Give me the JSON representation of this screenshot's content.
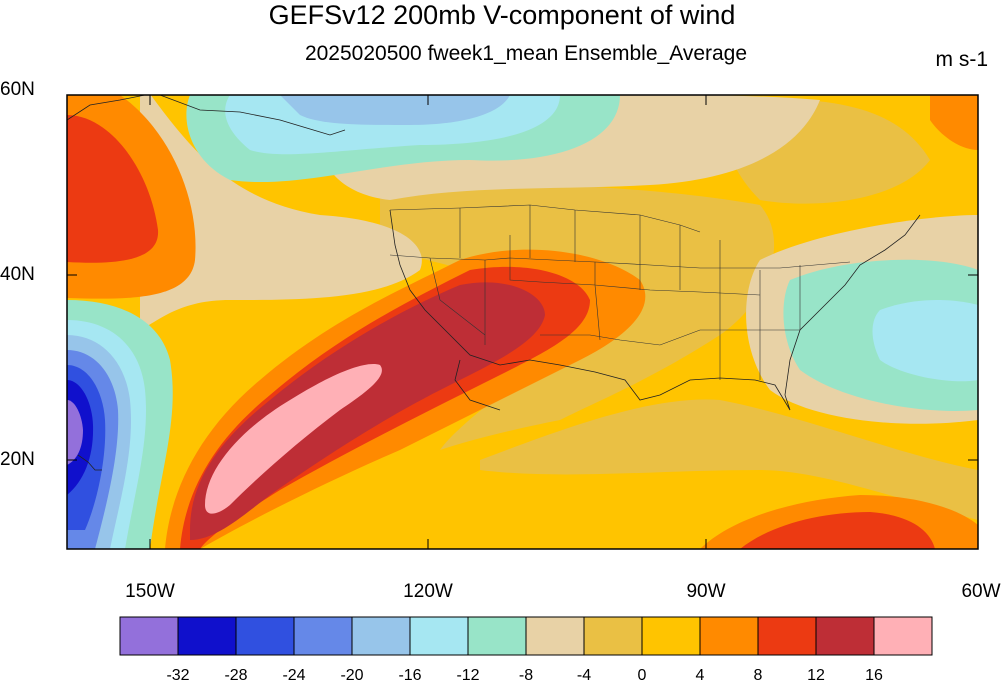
{
  "title": "GEFSv12 200mb V-component of wind",
  "subtitle": "2025020500 fweek1_mean Ensemble_Average",
  "units": "m s-1",
  "map": {
    "lat_labels": [
      "60N",
      "40N",
      "20N"
    ],
    "lon_labels": [
      "150W",
      "120W",
      "90W",
      "60W"
    ],
    "extent": {
      "lon": [
        -158,
        -60
      ],
      "lat": [
        10,
        60
      ]
    }
  },
  "colorbar": {
    "levels": [
      "-32",
      "-28",
      "-24",
      "-20",
      "-16",
      "-12",
      "-8",
      "-4",
      "0",
      "4",
      "8",
      "12",
      "16"
    ],
    "colors": [
      "#9370DB",
      "#1010CC",
      "#3050E0",
      "#6588E8",
      "#97C5EA",
      "#A6E7F2",
      "#98E4C8",
      "#E8D2A6",
      "#EAC044",
      "#FFC400",
      "#FF8A00",
      "#EC3A12",
      "#BE2E36",
      "#FFB0B6"
    ]
  }
}
